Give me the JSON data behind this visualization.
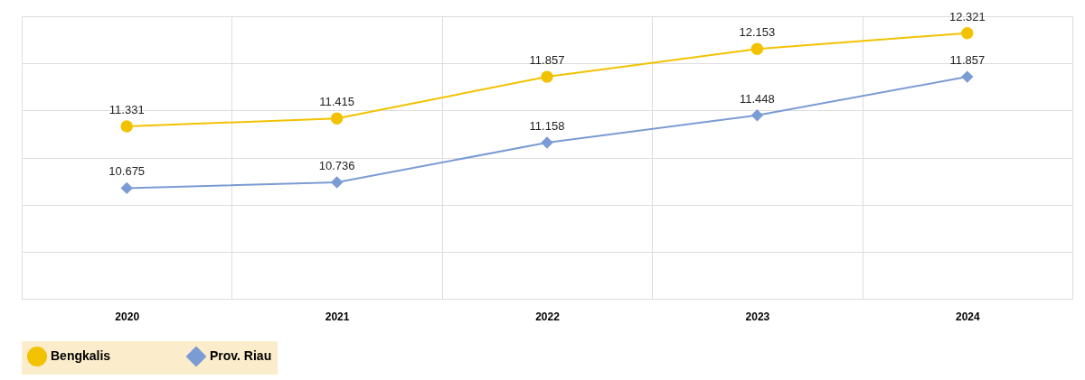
{
  "chart_data": {
    "type": "line",
    "categories": [
      "2020",
      "2021",
      "2022",
      "2023",
      "2024"
    ],
    "series": [
      {
        "name": "Bengkalis",
        "color": "#f2c200",
        "marker": "circle",
        "values": [
          11.331,
          11.415,
          11.857,
          12.153,
          12.321
        ]
      },
      {
        "name": "Prov. Riau",
        "color": "#7b9bd4",
        "marker": "diamond",
        "values": [
          10.675,
          10.736,
          11.158,
          11.448,
          11.857
        ]
      }
    ],
    "ylim": [
      9.5,
      12.5
    ],
    "yticks": [
      {
        "value": 9.5,
        "label": null
      },
      {
        "value": 10,
        "label": null
      },
      {
        "value": 10.5,
        "label": null
      },
      {
        "value": 11,
        "label": null
      },
      {
        "value": 11.5,
        "label": null
      },
      {
        "value": 12,
        "label": null
      },
      {
        "value": 12.5,
        "label": null
      }
    ],
    "tick_labels": "x",
    "grid": true,
    "legend": "bottom",
    "data_labels": true,
    "line_style": "solid"
  }
}
